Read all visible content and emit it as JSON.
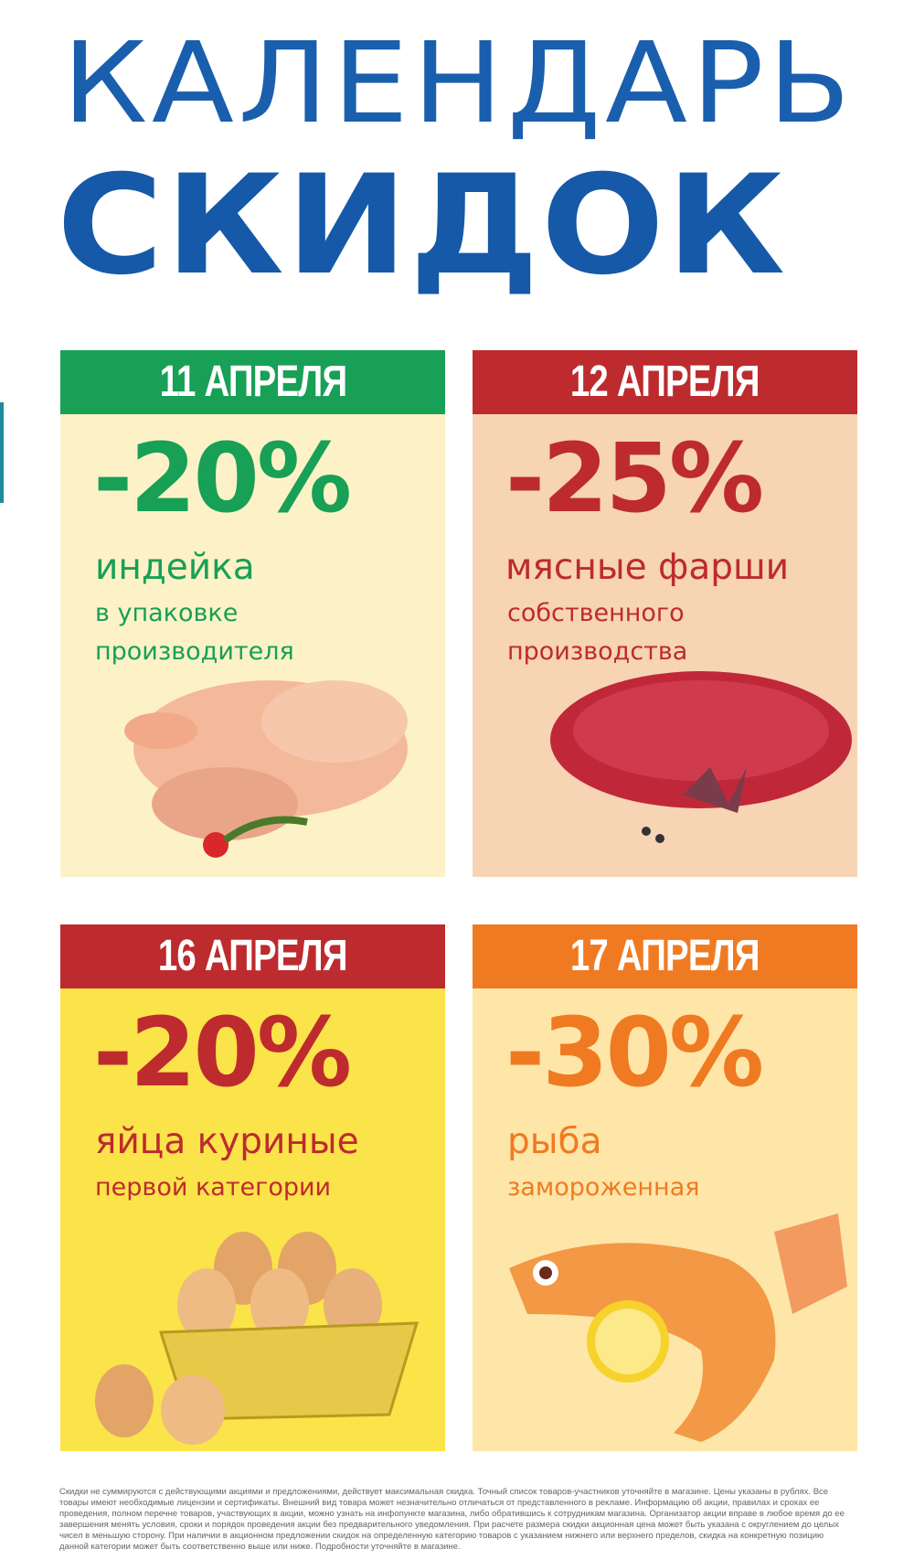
{
  "title": {
    "line1": "КАЛЕНДАРЬ",
    "line2": "СКИДОК"
  },
  "colors": {
    "title": "#1559a8",
    "green": "#17a056",
    "red": "#bd2b2e",
    "orange": "#f07a22",
    "cream": "#fdf2c7",
    "peach": "#f6d4b4",
    "yellow": "#fbe34a",
    "light_orange": "#fde6a8"
  },
  "cards": [
    {
      "date": "11 АПРЕЛЯ",
      "discount": "-20%",
      "product": "индейка",
      "details": [
        "в упаковке",
        "производителя"
      ],
      "icon": "turkey-icon"
    },
    {
      "date": "12 АПРЕЛЯ",
      "discount": "-25%",
      "product": "мясные фарши",
      "details": [
        "собственного",
        "производства"
      ],
      "icon": "minced-meat-icon"
    },
    {
      "date": "16 АПРЕЛЯ",
      "discount": "-20%",
      "product": "яйца куриные",
      "details": [
        "первой категории"
      ],
      "icon": "eggs-basket-icon"
    },
    {
      "date": "17 АПРЕЛЯ",
      "discount": "-30%",
      "product": "рыба",
      "details": [
        "замороженная"
      ],
      "icon": "fish-icon"
    }
  ],
  "disclaimer": "Скидки не суммируются с действующими акциями и предложениями, действует максимальная скидка. Точный список товаров-участников уточняйте в магазине. Цены указаны в рублях. Все товары имеют необходимые лицензии и сертификаты. Внешний вид товара может незначительно отличаться от представленного в рекламе. Информацию об акции, правилах и сроках ее проведения, полном перечне товаров, участвующих в акции, можно узнать на инфопункте магазина, либо обратившись к сотрудникам магазина. Организатор акции вправе в любое время до ее завершения менять условия, сроки и порядок проведения акции без предварительного уведомления. При расчете размера скидки акционная цена может быть указана с округлением до целых чисел в меньшую сторону. При наличии в акционном предложении скидок на определенную категорию товаров с указанием нижнего или верхнего пределов, скидка на конкретную позицию данной категории может быть соответственно выше или ниже. Подробности уточняйте в магазине."
}
